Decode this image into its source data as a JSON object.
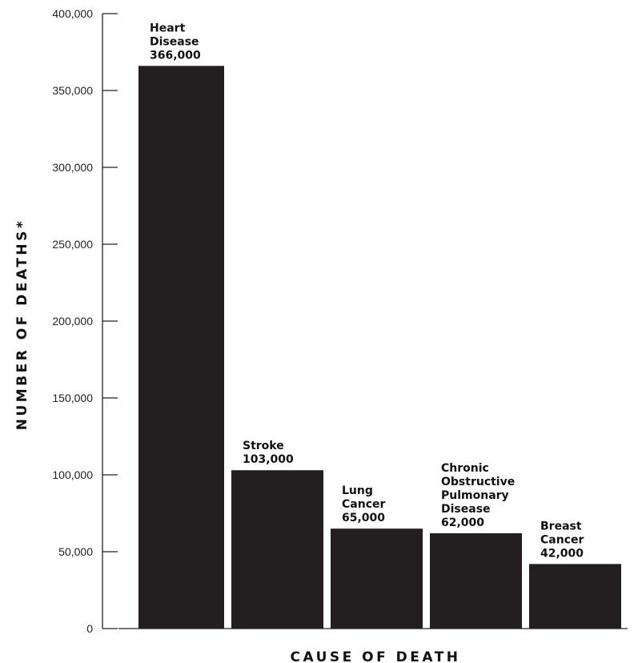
{
  "chart_data": {
    "type": "bar",
    "title": "",
    "xlabel": "CAUSE OF DEATH",
    "ylabel": "NUMBER OF DEATHS*",
    "ylim": [
      0,
      400000
    ],
    "yticks": [
      "0",
      "50,000",
      "100,000",
      "150,000",
      "200,000",
      "250,000",
      "300,000",
      "350,000",
      "400,000"
    ],
    "grid": false,
    "legend": "none",
    "bar_color": "#231f20",
    "categories": [
      [
        "Heart",
        "Disease"
      ],
      [
        "Stroke"
      ],
      [
        "Lung",
        "Cancer"
      ],
      [
        "Chronic",
        "Obstructive",
        "Pulmonary",
        "Disease"
      ],
      [
        "Breast",
        "Cancer"
      ]
    ],
    "values": [
      366000,
      103000,
      65000,
      62000,
      42000
    ],
    "value_labels": [
      "366,000",
      "103,000",
      "65,000",
      "62,000",
      "42,000"
    ]
  }
}
